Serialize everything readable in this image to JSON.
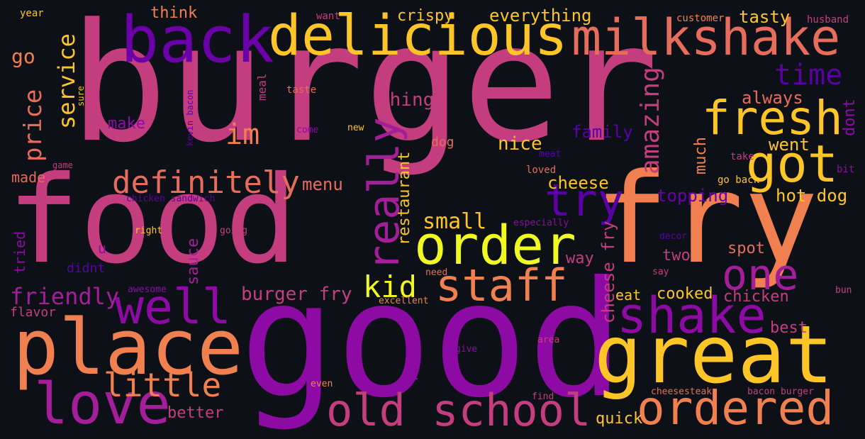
{
  "words": [
    {
      "text": "burger",
      "color": "#c43e7f"
    },
    {
      "text": "food",
      "color": "#c43e7f"
    },
    {
      "text": "good",
      "color": "#8d0aa4"
    },
    {
      "text": "fry",
      "color": "#f0804f"
    },
    {
      "text": "great",
      "color": "#fdc527"
    },
    {
      "text": "place",
      "color": "#f0804f"
    },
    {
      "text": "back",
      "color": "#6a00a8"
    },
    {
      "text": "delicious",
      "color": "#fdc527"
    },
    {
      "text": "milkshake",
      "color": "#e66c5c"
    },
    {
      "text": "love",
      "color": "#a41e9a"
    },
    {
      "text": "old school",
      "color": "#c43e7f"
    },
    {
      "text": "ordered",
      "color": "#f0804f"
    },
    {
      "text": "order",
      "color": "#f0f921"
    },
    {
      "text": "staff",
      "color": "#f0804f"
    },
    {
      "text": "shake",
      "color": "#8d0aa4"
    },
    {
      "text": "well",
      "color": "#8d0aa4"
    },
    {
      "text": "got",
      "color": "#fdc527"
    },
    {
      "text": "fresh",
      "color": "#fdc527"
    },
    {
      "text": "one",
      "color": "#a41e9a"
    },
    {
      "text": "really",
      "color": "#a41e9a"
    },
    {
      "text": "try",
      "color": "#5a01a5"
    },
    {
      "text": "definitely",
      "color": "#e66c5c"
    },
    {
      "text": "little",
      "color": "#f0804f"
    },
    {
      "text": "time",
      "color": "#5a01a5"
    },
    {
      "text": "amazing",
      "color": "#c43e7f"
    },
    {
      "text": "im",
      "color": "#f0804f"
    },
    {
      "text": "kid",
      "color": "#f0f921"
    },
    {
      "text": "friendly",
      "color": "#a41e9a"
    },
    {
      "text": "service",
      "color": "#fdc527"
    },
    {
      "text": "price",
      "color": "#e66c5c"
    },
    {
      "text": "burger fry",
      "color": "#c43e7f"
    },
    {
      "text": "cheese",
      "color": "#fdc527"
    },
    {
      "text": "nice",
      "color": "#fdc527"
    },
    {
      "text": "small",
      "color": "#fdc527"
    },
    {
      "text": "restaurant",
      "color": "#fdc527"
    },
    {
      "text": "cheese fry",
      "color": "#c43e7f"
    },
    {
      "text": "hot dog",
      "color": "#fdc527"
    },
    {
      "text": "went",
      "color": "#fdc527"
    },
    {
      "text": "topping",
      "color": "#6a00a8"
    },
    {
      "text": "much",
      "color": "#f0804f"
    },
    {
      "text": "family",
      "color": "#5a01a5"
    },
    {
      "text": "always",
      "color": "#e66c5c"
    },
    {
      "text": "thing",
      "color": "#c43e7f"
    },
    {
      "text": "everything",
      "color": "#fdc527"
    },
    {
      "text": "tasty",
      "color": "#fdc527"
    },
    {
      "text": "crispy",
      "color": "#fdc527"
    },
    {
      "text": "menu",
      "color": "#e66c5c"
    },
    {
      "text": "make",
      "color": "#8d0aa4"
    },
    {
      "text": "go",
      "color": "#f0804f"
    },
    {
      "text": "think",
      "color": "#f0804f"
    },
    {
      "text": "dont",
      "color": "#8d0aa4"
    },
    {
      "text": "sauce",
      "color": "#a41e9a"
    },
    {
      "text": "spot",
      "color": "#e66c5c"
    },
    {
      "text": "two",
      "color": "#c43e7f"
    },
    {
      "text": "way",
      "color": "#c43e7f"
    },
    {
      "text": "chicken",
      "color": "#c43e7f"
    },
    {
      "text": "eat",
      "color": "#fdc527"
    },
    {
      "text": "cooked",
      "color": "#fdc527"
    },
    {
      "text": "best",
      "color": "#c43e7f"
    },
    {
      "text": "quick",
      "color": "#fdc527"
    },
    {
      "text": "better",
      "color": "#c43e7f"
    },
    {
      "text": "first",
      "color": "#8d0aa4"
    },
    {
      "text": "tried",
      "color": "#8d0aa4"
    },
    {
      "text": "didnt",
      "color": "#5a01a5"
    },
    {
      "text": "u",
      "color": "#8d0aa4"
    },
    {
      "text": "made",
      "color": "#e66c5c"
    },
    {
      "text": "flavor",
      "color": "#c43e7f"
    },
    {
      "text": "dog",
      "color": "#e66c5c"
    },
    {
      "text": "meal",
      "color": "#c43e7f"
    },
    {
      "text": "taste",
      "color": "#e66c5c"
    },
    {
      "text": "year",
      "color": "#fdc527"
    },
    {
      "text": "want",
      "color": "#c43e7f"
    },
    {
      "text": "customer",
      "color": "#f0804f"
    },
    {
      "text": "husband",
      "color": "#c43e7f"
    },
    {
      "text": "sure",
      "color": "#fdc527"
    },
    {
      "text": "kevin bacon",
      "color": "#5a01a5"
    },
    {
      "text": "come",
      "color": "#8d0aa4"
    },
    {
      "text": "new",
      "color": "#fdc527"
    },
    {
      "text": "game",
      "color": "#c43e7f"
    },
    {
      "text": "chicken sandwich",
      "color": "#5a01a5"
    },
    {
      "text": "meat",
      "color": "#5a01a5"
    },
    {
      "text": "loved",
      "color": "#e66c5c"
    },
    {
      "text": "take",
      "color": "#c43e7f"
    },
    {
      "text": "bit",
      "color": "#8d0aa4"
    },
    {
      "text": "go back",
      "color": "#fdc527"
    },
    {
      "text": "right",
      "color": "#fdc527"
    },
    {
      "text": "going",
      "color": "#c43e7f"
    },
    {
      "text": "especially",
      "color": "#8d0aa4"
    },
    {
      "text": "decor",
      "color": "#5a01a5"
    },
    {
      "text": "say",
      "color": "#c43e7f"
    },
    {
      "text": "awesome",
      "color": "#8d0aa4"
    },
    {
      "text": "excellent",
      "color": "#f0804f"
    },
    {
      "text": "need",
      "color": "#e66c5c"
    },
    {
      "text": "area",
      "color": "#c43e7f"
    },
    {
      "text": "give",
      "color": "#8d0aa4"
    },
    {
      "text": "even",
      "color": "#f0804f"
    },
    {
      "text": "find",
      "color": "#c43e7f"
    },
    {
      "text": "cheesesteak",
      "color": "#e66c5c"
    },
    {
      "text": "bacon burger",
      "color": "#c43e7f"
    },
    {
      "text": "bun",
      "color": "#c43e7f"
    }
  ]
}
